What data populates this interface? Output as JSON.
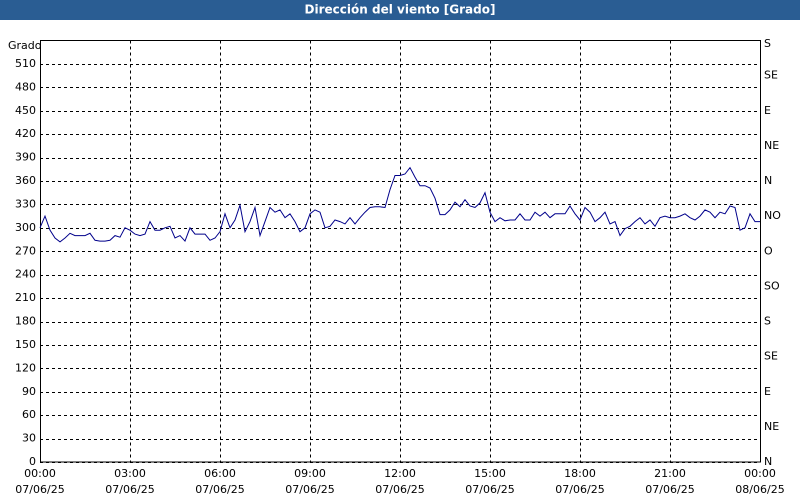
{
  "chart_data": {
    "type": "line",
    "title": "Dirección del viento [Grado]",
    "ylabel": "Grado",
    "color": "#00008b",
    "grid": true,
    "xlim": [
      0,
      1440
    ],
    "ylim": [
      0,
      540
    ],
    "y2lim": [
      0,
      540
    ],
    "xticks": [
      {
        "value": 0,
        "label": "00:00"
      },
      {
        "value": 180,
        "label": "03:00"
      },
      {
        "value": 360,
        "label": "06:00"
      },
      {
        "value": 540,
        "label": "09:00"
      },
      {
        "value": 720,
        "label": "12:00"
      },
      {
        "value": 900,
        "label": "15:00"
      },
      {
        "value": 1080,
        "label": "18:00"
      },
      {
        "value": 1260,
        "label": "21:00"
      },
      {
        "value": 1440,
        "label": "00:00"
      }
    ],
    "x_date_labels": [
      "07/06/25",
      "07/06/25",
      "07/06/25",
      "07/06/25",
      "07/06/25",
      "07/06/25",
      "07/06/25",
      "07/06/25",
      "08/06/25"
    ],
    "yticks": [
      0,
      30,
      60,
      90,
      120,
      150,
      180,
      210,
      240,
      270,
      300,
      330,
      360,
      390,
      420,
      450,
      480,
      510
    ],
    "y2ticks": [
      {
        "value": 0,
        "label": "N"
      },
      {
        "value": 45,
        "label": "NE"
      },
      {
        "value": 90,
        "label": "E"
      },
      {
        "value": 135,
        "label": "SE"
      },
      {
        "value": 180,
        "label": "S"
      },
      {
        "value": 225,
        "label": "SO"
      },
      {
        "value": 270,
        "label": "O"
      },
      {
        "value": 315,
        "label": "NO"
      },
      {
        "value": 360,
        "label": "N"
      },
      {
        "value": 405,
        "label": "NE"
      },
      {
        "value": 450,
        "label": "E"
      },
      {
        "value": 495,
        "label": "SE"
      },
      {
        "value": 540,
        "label": "S"
      }
    ],
    "x": [
      0,
      10,
      20,
      30,
      40,
      50,
      60,
      70,
      80,
      90,
      100,
      110,
      120,
      130,
      140,
      150,
      160,
      170,
      180,
      190,
      200,
      210,
      220,
      230,
      240,
      250,
      260,
      270,
      280,
      290,
      300,
      310,
      320,
      330,
      340,
      350,
      360,
      370,
      380,
      390,
      400,
      410,
      420,
      430,
      440,
      450,
      460,
      470,
      480,
      490,
      500,
      510,
      520,
      530,
      540,
      550,
      560,
      570,
      580,
      590,
      600,
      610,
      620,
      630,
      640,
      650,
      660,
      670,
      680,
      690,
      700,
      710,
      720,
      730,
      740,
      750,
      760,
      770,
      780,
      790,
      800,
      810,
      820,
      830,
      840,
      850,
      860,
      870,
      880,
      890,
      900,
      910,
      920,
      930,
      940,
      950,
      960,
      970,
      980,
      990,
      1000,
      1010,
      1020,
      1030,
      1040,
      1050,
      1060,
      1070,
      1080,
      1090,
      1100,
      1110,
      1120,
      1130,
      1140,
      1150,
      1160,
      1170,
      1180,
      1190,
      1200,
      1210,
      1220,
      1230,
      1240,
      1250,
      1260,
      1270,
      1280,
      1290,
      1300,
      1310,
      1320,
      1330,
      1340,
      1350,
      1360,
      1370,
      1380,
      1390,
      1400,
      1410,
      1420,
      1430,
      1440
    ],
    "values": [
      300,
      315,
      297,
      287,
      282,
      287,
      293,
      290,
      290,
      290,
      293,
      284,
      283,
      283,
      284,
      290,
      288,
      300,
      297,
      292,
      290,
      292,
      308,
      297,
      297,
      300,
      302,
      287,
      290,
      283,
      300,
      292,
      292,
      292,
      284,
      287,
      295,
      318,
      300,
      310,
      329,
      295,
      308,
      326,
      290,
      308,
      326,
      320,
      323,
      313,
      318,
      308,
      295,
      300,
      318,
      323,
      320,
      300,
      302,
      310,
      308,
      305,
      313,
      305,
      313,
      320,
      326,
      327,
      327,
      326,
      349,
      367,
      367,
      369,
      377,
      365,
      354,
      354,
      351,
      338,
      317,
      317,
      323,
      333,
      327,
      336,
      328,
      326,
      332,
      345,
      320,
      308,
      313,
      309,
      310,
      310,
      318,
      310,
      310,
      320,
      315,
      320,
      313,
      318,
      318,
      318,
      328,
      318,
      310,
      326,
      320,
      308,
      313,
      320,
      305,
      308,
      290,
      299,
      302,
      308,
      313,
      305,
      310,
      302,
      313,
      315,
      313,
      313,
      315,
      318,
      313,
      310,
      315,
      323,
      320,
      313,
      320,
      318,
      328,
      326,
      297,
      300,
      318,
      308,
      308
    ]
  }
}
